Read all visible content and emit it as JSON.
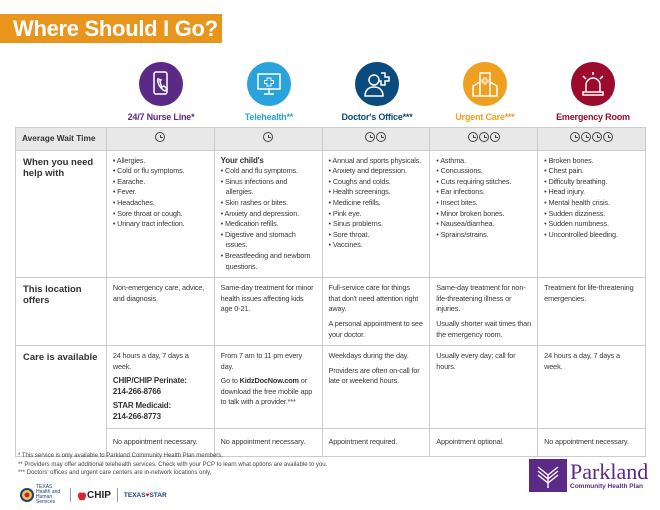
{
  "title": "Where Should I Go?",
  "row_labels": {
    "wait": "Average Wait Time",
    "help": "When you need help with",
    "offers": "This location offers",
    "available": "Care is available"
  },
  "columns": [
    {
      "name": "24/7 Nurse Line*",
      "color": "#5B2A86",
      "icon": "phone-icon",
      "clocks": 1,
      "help_heading": "",
      "help": [
        "Allergies.",
        "Cold or flu symptoms.",
        "Earache.",
        "Fever.",
        "Headaches.",
        "Sore throat or cough.",
        "Urinary tract infection."
      ],
      "offers": [
        "Non-emergency care, advice, and diagnosis."
      ],
      "available": [
        "24 hours a day, 7 days a week."
      ],
      "phones": [
        {
          "label": "CHIP/CHIP Perinate:",
          "number": "214-266-8766"
        },
        {
          "label": "STAR Medicaid:",
          "number": "214-266-8773"
        }
      ],
      "appointment": "No appointment necessary."
    },
    {
      "name": "Telehealth**",
      "color": "#2AA3DC",
      "icon": "monitor-medical-icon",
      "clocks": 1,
      "help_heading": "Your child's",
      "help": [
        "Cold and flu symptoms.",
        "Sinus infections and allergies.",
        "Skin rashes or bites.",
        "Anxiety and depression.",
        "Medication refills.",
        "Digestive and stomach issues.",
        "Breastfeeding and newborn questions."
      ],
      "offers": [
        "Same-day treatment for minor health issues affecting kids age 0-21."
      ],
      "available": [
        "From 7 am to 11 pm every day."
      ],
      "link_pre": "Go to ",
      "link": "KidzDocNow.com",
      "link_post": " or download the free mobile app to talk with a provider.***",
      "appointment": "No appointment necessary."
    },
    {
      "name": "Doctor's Office***",
      "color": "#0B4A7D",
      "icon": "doctor-icon",
      "clocks": 2,
      "help_heading": "",
      "help": [
        "Annual and sports physicals.",
        "Anxiety and depression.",
        "Coughs and colds.",
        "Health screenings.",
        "Medicine refills.",
        "Pink eye.",
        "Sinus problems.",
        "Sore throat.",
        "Vaccines."
      ],
      "offers": [
        "Full-service care for things that don't need attention right away.",
        "A personal appointment to see your doctor."
      ],
      "available": [
        "Weekdays during the day.",
        "Providers are often on-call for late or weekend hours."
      ],
      "appointment": "Appointment required."
    },
    {
      "name": "Urgent Care***",
      "color": "#F0A020",
      "icon": "clinic-building-icon",
      "clocks": 3,
      "help_heading": "",
      "help": [
        "Asthma.",
        "Concussions.",
        "Cuts requiring stitches.",
        "Ear infections.",
        "Insect bites.",
        "Minor broken bones.",
        "Nausea/diarrhea.",
        "Sprains/strains."
      ],
      "offers": [
        "Same-day treatment for non-life-threatening illness or injuries.",
        "Usually shorter wait times than the emergency room."
      ],
      "available": [
        "Usually every day; call for hours."
      ],
      "appointment": "Appointment optional."
    },
    {
      "name": "Emergency Room",
      "color": "#9B0B2E",
      "icon": "siren-icon",
      "clocks": 4,
      "help_heading": "",
      "help": [
        "Broken bones.",
        "Chest pain.",
        "Difficulty breathing.",
        "Head injury.",
        "Mental health crisis.",
        "Sudden dizziness.",
        "Sudden numbness.",
        "Uncontrolled bleeding."
      ],
      "offers": [
        "Treatment for life-threatening emergencies."
      ],
      "available": [
        "24 hours a day, 7 days a week."
      ],
      "appointment": "No appointment necessary."
    }
  ],
  "footnotes": [
    "* This service is only available to Parkland Community Health Plan members.",
    "** Providers may offer additional telehealth services. Check with your PCP to learn what options are available to you.",
    "*** Doctors' offices and urgent care centers are in-network locations only."
  ],
  "logos": {
    "texas_hhs": "TEXAS Health and Human Services",
    "chip": "CHIP",
    "texas_star": "TEXAS STAR"
  },
  "brand": {
    "name": "Parkland",
    "sub": "Community Health Plan",
    "color": "#5B2A86"
  }
}
